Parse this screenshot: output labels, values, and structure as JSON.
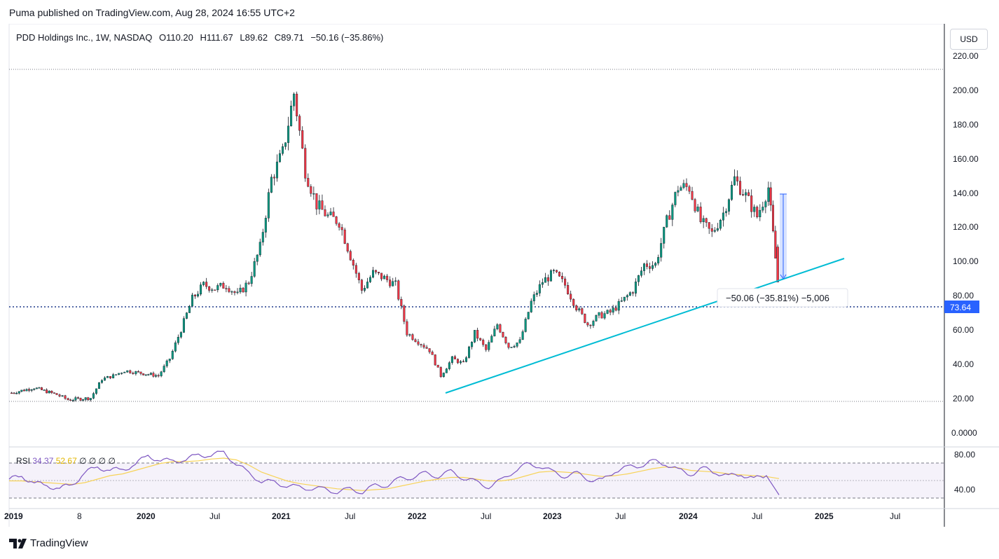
{
  "header": {
    "publisher": "Puma published on TradingView.com, Aug 28, 2024 16:55 UTC+2"
  },
  "legend": {
    "symbol": "PDD Holdings Inc., 1W, NASDAQ",
    "open": "O110.20",
    "high": "H111.67",
    "low": "L89.62",
    "close": "C89.71",
    "change": "−50.16 (−35.86%)"
  },
  "currency": "USD",
  "price_axis": [
    "220.00",
    "200.00",
    "180.00",
    "160.00",
    "140.00",
    "120.00",
    "100.00",
    "80.00",
    "60.00",
    "40.00",
    "20.00",
    "0.0000"
  ],
  "last_price_label": "73.64",
  "measure_label": "−50.06 (−35.81%) −5,006",
  "rsi": {
    "label": "RSI",
    "value": "34.37",
    "ma_value": "52.67",
    "extras": "∅  ∅  ∅  ∅",
    "axis": [
      "80.00",
      "40.00"
    ]
  },
  "time_axis": [
    "2019",
    "8",
    "2020",
    "Jul",
    "2021",
    "Jul",
    "2022",
    "Jul",
    "2023",
    "Jul",
    "2024",
    "Jul",
    "2025",
    "Jul"
  ],
  "footer": {
    "brand": "TradingView"
  },
  "colors": {
    "up": "#089981",
    "down": "#f23645",
    "trendline": "#00bcd4",
    "rsi_line": "#7e57c2",
    "rsi_ma": "#f7d358",
    "last_price_bg": "#2962ff",
    "measure_fill": "#2962ff",
    "hline": "#1e3a8a"
  },
  "chart_data": [
    {
      "type": "candlestick",
      "title": "PDD Holdings Inc., 1W, NASDAQ",
      "ylim": [
        0,
        220
      ],
      "x_range": [
        "2019-01",
        "2025-09"
      ],
      "weekly_close_estimates": [
        [
          "2019-01",
          25
        ],
        [
          "2019-03",
          28
        ],
        [
          "2019-05",
          24
        ],
        [
          "2019-06",
          21
        ],
        [
          "2019-08",
          22
        ],
        [
          "2019-09",
          33
        ],
        [
          "2019-10",
          35
        ],
        [
          "2019-11",
          38
        ],
        [
          "2019-12",
          37
        ],
        [
          "2020-02",
          35
        ],
        [
          "2020-03",
          45
        ],
        [
          "2020-04",
          62
        ],
        [
          "2020-05",
          80
        ],
        [
          "2020-06",
          88
        ],
        [
          "2020-07",
          86
        ],
        [
          "2020-08",
          88
        ],
        [
          "2020-09",
          82
        ],
        [
          "2020-10",
          90
        ],
        [
          "2020-11",
          110
        ],
        [
          "2020-12",
          150
        ],
        [
          "2021-01",
          165
        ],
        [
          "2021-02",
          200
        ],
        [
          "2021-03",
          155
        ],
        [
          "2021-04",
          135
        ],
        [
          "2021-05",
          128
        ],
        [
          "2021-06",
          125
        ],
        [
          "2021-07",
          105
        ],
        [
          "2021-08",
          85
        ],
        [
          "2021-09",
          95
        ],
        [
          "2021-10",
          92
        ],
        [
          "2021-11",
          88
        ],
        [
          "2021-12",
          60
        ],
        [
          "2022-01",
          55
        ],
        [
          "2022-02",
          50
        ],
        [
          "2022-03",
          35
        ],
        [
          "2022-04",
          45
        ],
        [
          "2022-05",
          42
        ],
        [
          "2022-06",
          60
        ],
        [
          "2022-07",
          50
        ],
        [
          "2022-08",
          65
        ],
        [
          "2022-09",
          52
        ],
        [
          "2022-10",
          55
        ],
        [
          "2022-11",
          78
        ],
        [
          "2022-12",
          90
        ],
        [
          "2023-01",
          95
        ],
        [
          "2023-02",
          88
        ],
        [
          "2023-03",
          75
        ],
        [
          "2023-04",
          65
        ],
        [
          "2023-05",
          70
        ],
        [
          "2023-06",
          72
        ],
        [
          "2023-07",
          78
        ],
        [
          "2023-08",
          85
        ],
        [
          "2023-09",
          100
        ],
        [
          "2023-10",
          100
        ],
        [
          "2023-11",
          125
        ],
        [
          "2023-12",
          145
        ],
        [
          "2024-01",
          145
        ],
        [
          "2024-02",
          125
        ],
        [
          "2024-03",
          118
        ],
        [
          "2024-04",
          130
        ],
        [
          "2024-05",
          150
        ],
        [
          "2024-06",
          140
        ],
        [
          "2024-07",
          128
        ],
        [
          "2024-08",
          145
        ],
        [
          "2024-08-26",
          89.71
        ]
      ],
      "last_bar": {
        "open": 110.2,
        "high": 111.67,
        "low": 89.62,
        "close": 89.71,
        "change": -50.16,
        "change_pct": -35.86
      },
      "horizontal_lines": [
        212.5,
        73.64,
        18.5
      ],
      "trendline": {
        "from": [
          "2022-03",
          24
        ],
        "to": [
          "2025-01",
          102
        ]
      },
      "measure": {
        "from": 139.8,
        "to": 89.7,
        "label": "−50.06 (−35.81%) −5,006"
      }
    },
    {
      "type": "line",
      "title": "RSI",
      "ylim": [
        20,
        90
      ],
      "series": [
        {
          "name": "RSI",
          "values": [
            52,
            55,
            48,
            44,
            42,
            45,
            60,
            65,
            63,
            62,
            70,
            78,
            74,
            72,
            75,
            79,
            80,
            82,
            70,
            58,
            50,
            48,
            45,
            42,
            42,
            40,
            38,
            40,
            38,
            44,
            46,
            52,
            55,
            58,
            56,
            60,
            54,
            48,
            44,
            50,
            62,
            68,
            68,
            60,
            56,
            58,
            52,
            50,
            62,
            65,
            68,
            72,
            70,
            62,
            58,
            64,
            60,
            55,
            58,
            52,
            56,
            34
          ]
        },
        {
          "name": "MA",
          "values": [
            50,
            50,
            49,
            48,
            47,
            46,
            48,
            52,
            56,
            58,
            62,
            66,
            70,
            72,
            72,
            73,
            75,
            76,
            74,
            68,
            60,
            55,
            50,
            47,
            45,
            43,
            41,
            40,
            39,
            40,
            41,
            44,
            47,
            50,
            52,
            54,
            54,
            52,
            50,
            50,
            52,
            56,
            60,
            61,
            60,
            59,
            57,
            55,
            56,
            58,
            61,
            64,
            66,
            65,
            62,
            61,
            60,
            58,
            57,
            56,
            55,
            52.67
          ]
        }
      ]
    }
  ]
}
